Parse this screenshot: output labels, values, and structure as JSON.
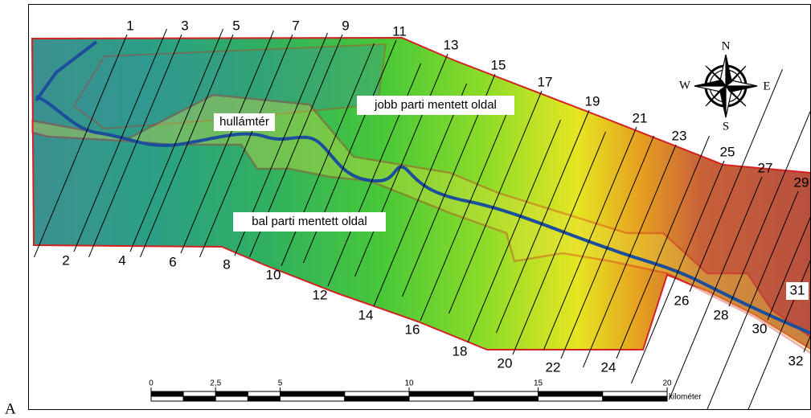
{
  "panel_label": "A",
  "area_labels": {
    "floodplain": "hullámtér",
    "right_bank": "jobb parti mentett oldal",
    "left_bank": "bal parti mentett oldal"
  },
  "sections": [
    "1",
    "2",
    "3",
    "4",
    "5",
    "6",
    "7",
    "8",
    "9",
    "10",
    "11",
    "12",
    "13",
    "14",
    "15",
    "16",
    "17",
    "18",
    "19",
    "20",
    "21",
    "22",
    "23",
    "24",
    "25",
    "26",
    "27",
    "28",
    "29",
    "30",
    "31",
    "32"
  ],
  "compass": {
    "north": "N",
    "east": "E",
    "south": "S",
    "west": "W"
  },
  "scale_bar": {
    "ticks": [
      0,
      {
        "value": 2.5,
        "label": "2,5"
      },
      5,
      10,
      15,
      20
    ],
    "unit": "kilométer"
  }
}
